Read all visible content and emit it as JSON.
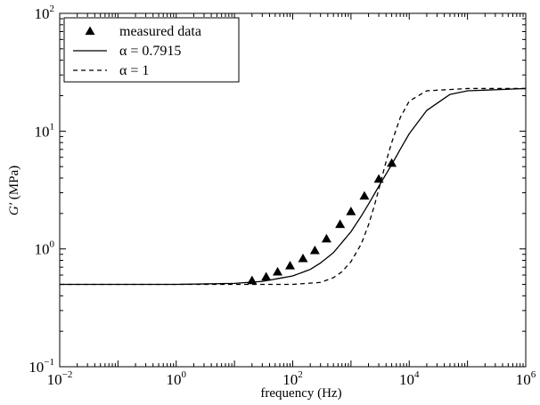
{
  "chart_data": {
    "type": "line",
    "title": "",
    "xlabel": "frequency (Hz)",
    "ylabel_italic": "G′",
    "ylabel_rest": " (MPa)",
    "x_scale": "log",
    "y_scale": "log",
    "xlim": [
      0.01,
      1000000
    ],
    "ylim": [
      0.1,
      100
    ],
    "x_ticks": [
      {
        "base": "10",
        "exp": "−2",
        "value": 0.01
      },
      {
        "base": "10",
        "exp": "0",
        "value": 1
      },
      {
        "base": "10",
        "exp": "2",
        "value": 100
      },
      {
        "base": "10",
        "exp": "4",
        "value": 10000
      },
      {
        "base": "10",
        "exp": "6",
        "value": 1000000
      }
    ],
    "y_ticks": [
      {
        "base": "10",
        "exp": "−1",
        "value": 0.1
      },
      {
        "base": "10",
        "exp": "0",
        "value": 1
      },
      {
        "base": "10",
        "exp": "1",
        "value": 10
      },
      {
        "base": "10",
        "exp": "2",
        "value": 100
      }
    ],
    "grid": false,
    "legend_position": "top-left",
    "series": [
      {
        "name": "measured data",
        "kind": "markers",
        "marker": "triangle",
        "color": "#000000",
        "x": [
          20,
          35,
          55,
          90,
          150,
          240,
          380,
          650,
          1000,
          1700,
          3000,
          5000
        ],
        "y": [
          0.54,
          0.58,
          0.64,
          0.72,
          0.83,
          0.97,
          1.22,
          1.62,
          2.08,
          2.82,
          3.92,
          5.35
        ]
      },
      {
        "name": "α = 0.7915",
        "kind": "line",
        "dash": "solid",
        "color": "#000000",
        "x": [
          0.01,
          1,
          10,
          30,
          100,
          200,
          300,
          500,
          1000,
          1500,
          2000,
          3000,
          5000,
          7000,
          10000,
          20000,
          50000,
          100000,
          1000000
        ],
        "y": [
          0.5,
          0.5,
          0.51,
          0.53,
          0.59,
          0.67,
          0.76,
          0.93,
          1.4,
          1.9,
          2.4,
          3.4,
          5.2,
          7.0,
          9.5,
          15,
          20.5,
          22,
          23
        ]
      },
      {
        "name": "α = 1",
        "kind": "line",
        "dash": "dashed",
        "color": "#000000",
        "x": [
          0.01,
          1,
          100,
          300,
          500,
          700,
          1000,
          1500,
          2000,
          2500,
          3000,
          4000,
          5000,
          7000,
          10000,
          20000,
          100000,
          1000000
        ],
        "y": [
          0.5,
          0.5,
          0.5,
          0.52,
          0.57,
          0.64,
          0.78,
          1.1,
          1.6,
          2.3,
          3.2,
          5.5,
          8.0,
          13,
          18,
          22,
          23,
          23
        ]
      }
    ]
  }
}
